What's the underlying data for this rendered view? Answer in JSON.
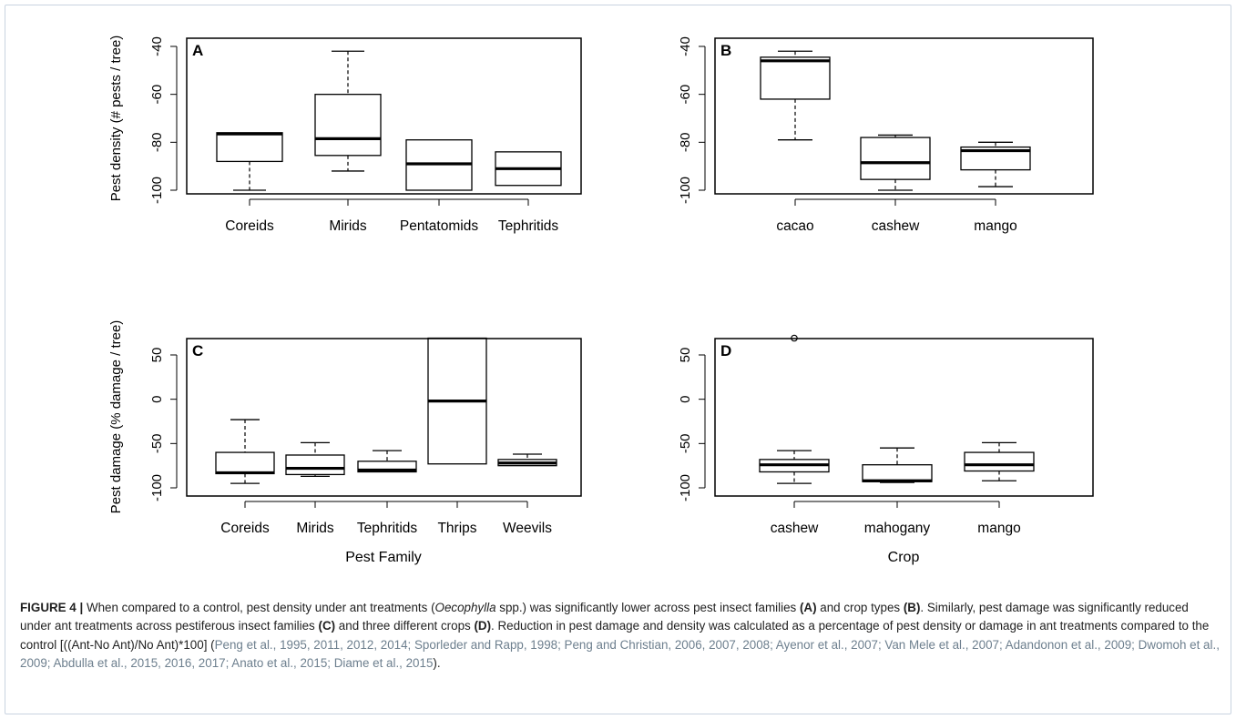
{
  "chart_data": [
    {
      "type": "boxplot",
      "panel_label": "A",
      "ylabel": "Pest density (# pests / tree)",
      "xlabel": "",
      "ylim": [
        -100,
        -40
      ],
      "y_ticks": [
        -40,
        -60,
        -80,
        -100
      ],
      "tick_labels": [
        "-40",
        "-60",
        "-80",
        "-100"
      ],
      "categories": [
        "Coreids",
        "Mirids",
        "Pentatomids",
        "Tephritids"
      ],
      "boxes": [
        {
          "whisker_low": -100,
          "q1": -88,
          "median": -76.5,
          "q3": -76,
          "whisker_high": -76
        },
        {
          "whisker_low": -92,
          "q1": -85.5,
          "median": -78.5,
          "q3": -60,
          "whisker_high": -42
        },
        {
          "whisker_low": -100,
          "q1": -100,
          "median": -89,
          "q3": -79,
          "whisker_high": -79
        },
        {
          "whisker_low": -98,
          "q1": -98,
          "median": -91,
          "q3": -84,
          "whisker_high": -84
        }
      ],
      "outliers": []
    },
    {
      "type": "boxplot",
      "panel_label": "B",
      "ylabel": "",
      "xlabel": "",
      "ylim": [
        -100,
        -40
      ],
      "y_ticks": [
        -40,
        -60,
        -80,
        -100
      ],
      "tick_labels": [
        "-40",
        "-60",
        "-80",
        "-100"
      ],
      "categories": [
        "cacao",
        "cashew",
        "mango"
      ],
      "boxes": [
        {
          "whisker_low": -79,
          "q1": -62,
          "median": -46,
          "q3": -44.5,
          "whisker_high": -42
        },
        {
          "whisker_low": -100,
          "q1": -95.5,
          "median": -88.5,
          "q3": -78,
          "whisker_high": -77
        },
        {
          "whisker_low": -98.5,
          "q1": -91.5,
          "median": -83.5,
          "q3": -82,
          "whisker_high": -80
        }
      ],
      "outliers": []
    },
    {
      "type": "boxplot",
      "panel_label": "C",
      "ylabel": "Pest damage (% damage / tree)",
      "xlabel": "Pest Family",
      "ylim": [
        -100,
        70
      ],
      "y_ticks": [
        50,
        0,
        -50,
        -100
      ],
      "tick_labels": [
        "50",
        "0",
        "-50",
        "-100"
      ],
      "categories": [
        "Coreids",
        "Mirids",
        "Tephritids",
        "Thrips",
        "Weevils"
      ],
      "boxes": [
        {
          "whisker_low": -95,
          "q1": -84,
          "median": -83,
          "q3": -60,
          "whisker_high": -23
        },
        {
          "whisker_low": -87,
          "q1": -85,
          "median": -78,
          "q3": -63,
          "whisker_high": -49
        },
        {
          "whisker_low": -82,
          "q1": -82,
          "median": -80,
          "q3": -70,
          "whisker_high": -58
        },
        {
          "whisker_low": -73,
          "q1": -73,
          "median": -2,
          "q3": 69,
          "whisker_high": 69
        },
        {
          "whisker_low": -75,
          "q1": -75,
          "median": -72,
          "q3": -68,
          "whisker_high": -62
        }
      ],
      "outliers": []
    },
    {
      "type": "boxplot",
      "panel_label": "D",
      "ylabel": "",
      "xlabel": "Crop",
      "ylim": [
        -100,
        70
      ],
      "y_ticks": [
        50,
        0,
        -50,
        -100
      ],
      "tick_labels": [
        "50",
        "0",
        "-50",
        "-100"
      ],
      "categories": [
        "cashew",
        "mahogany",
        "mango"
      ],
      "boxes": [
        {
          "whisker_low": -95,
          "q1": -82,
          "median": -74,
          "q3": -68,
          "whisker_high": -58
        },
        {
          "whisker_low": -94,
          "q1": -93,
          "median": -92,
          "q3": -74,
          "whisker_high": -55
        },
        {
          "whisker_low": -92,
          "q1": -81,
          "median": -74,
          "q3": -60,
          "whisker_high": -49
        }
      ],
      "outliers": [
        {
          "category": "cashew",
          "value": 69
        }
      ]
    }
  ],
  "caption": {
    "figure_label": "FIGURE 4 |",
    "text_1": " When compared to a control, pest density under ant treatments (",
    "italic_1": "Oecophylla",
    "text_2": " spp.) was significantly lower across pest insect families ",
    "ref_a": "(A)",
    "text_3": " and crop types ",
    "ref_b": "(B)",
    "text_4": ". Similarly, pest damage was significantly reduced under ant treatments across pestiferous insect families ",
    "ref_c": "(C)",
    "text_5": " and three different crops ",
    "ref_d": "(D)",
    "text_6": ". Reduction in pest damage and density was calculated as a percentage of pest density or damage in ant treatments compared to the control [((Ant-No Ant)/No Ant)*100] (",
    "citations": "Peng et al., 1995, 2011, 2012, 2014; Sporleder and Rapp, 1998; Peng and Christian, 2006, 2007, 2008; Ayenor et al., 2007; Van Mele et al., 2007; Adandonon et al., 2009; Dwomoh et al., 2009; Abdulla et al., 2015, 2016, 2017; Anato et al., 2015; Diame et al., 2015",
    "text_7": ")."
  },
  "colors": {
    "frame": "#c9d3e0",
    "ink": "#000000",
    "citation": "#6d7f8e"
  }
}
